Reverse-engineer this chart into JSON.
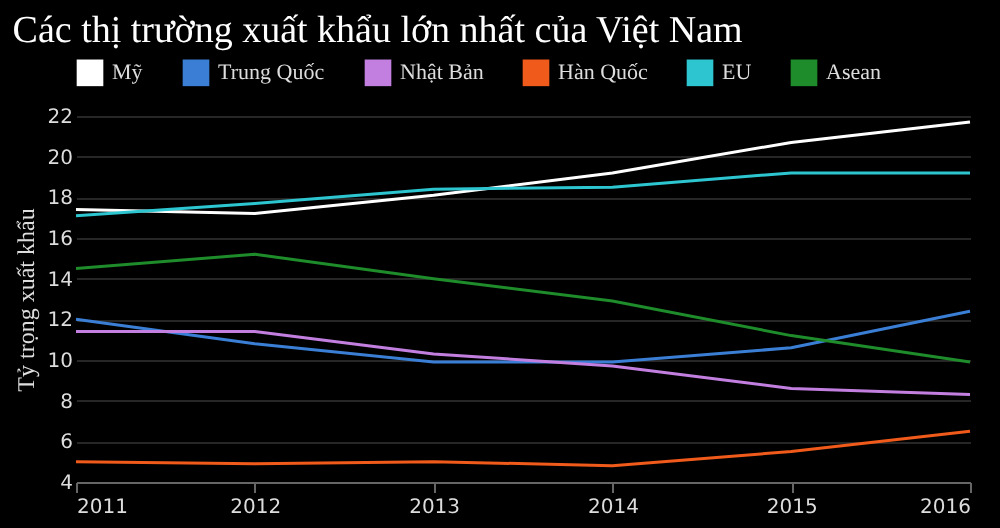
{
  "chart_data": {
    "type": "line",
    "title": "Các thị trường xuất khẩu lớn nhất của Việt Nam",
    "ylabel": "Tỷ trọng xuất khẩu",
    "x": [
      2011,
      2012,
      2013,
      2014,
      2015,
      2016
    ],
    "series": [
      {
        "name": "Mỹ",
        "color": "#ffffff",
        "values": [
          17.4,
          17.2,
          18.1,
          19.2,
          20.7,
          21.7
        ]
      },
      {
        "name": "Trung Quốc",
        "color": "#3a7fd5",
        "values": [
          12.0,
          10.8,
          9.9,
          9.9,
          10.6,
          12.4
        ]
      },
      {
        "name": "Nhật Bản",
        "color": "#c27fe0",
        "values": [
          11.4,
          11.4,
          10.3,
          9.7,
          8.6,
          8.3
        ]
      },
      {
        "name": "Hàn Quốc",
        "color": "#f05a1a",
        "values": [
          5.0,
          4.9,
          5.0,
          4.8,
          5.5,
          6.5
        ]
      },
      {
        "name": "EU",
        "color": "#2cc5d0",
        "values": [
          17.1,
          17.7,
          18.4,
          18.5,
          19.2,
          19.2
        ]
      },
      {
        "name": "Asean",
        "color": "#1e8c2a",
        "values": [
          14.5,
          15.2,
          14.0,
          12.9,
          11.2,
          9.9
        ]
      }
    ],
    "xlim": [
      2011,
      2016
    ],
    "xticks": [
      2011,
      2012,
      2013,
      2014,
      2015,
      2016
    ],
    "ylim": [
      4,
      22
    ],
    "yticks": [
      4,
      6,
      8,
      10,
      12,
      14,
      16,
      18,
      20,
      22
    ],
    "grid": "y",
    "legend": "top left",
    "marker": "none",
    "line_style": "solid"
  }
}
